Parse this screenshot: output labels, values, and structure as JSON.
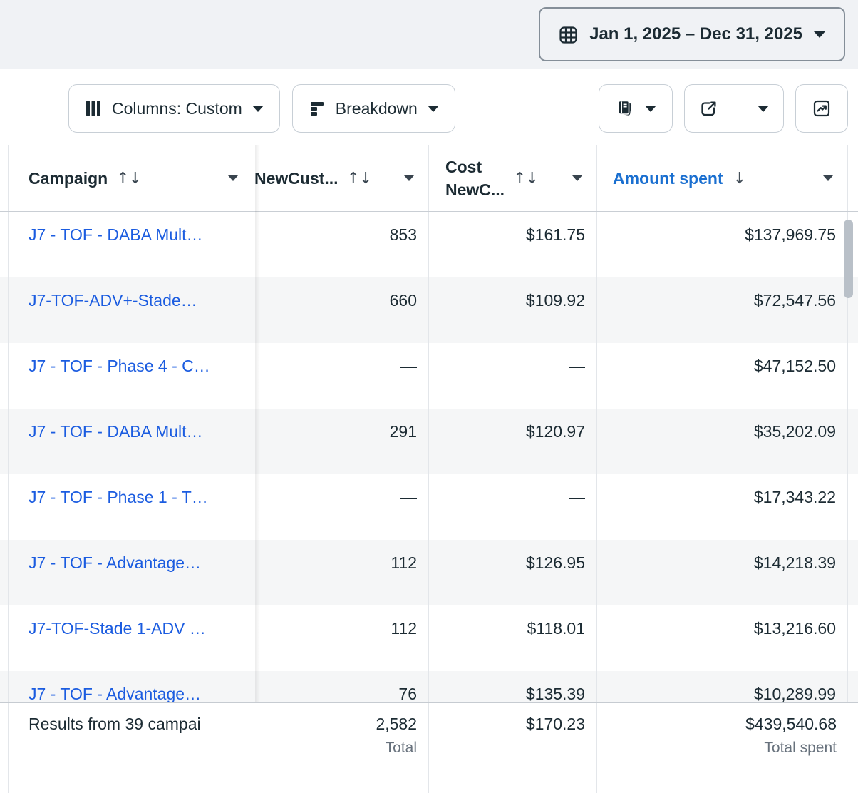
{
  "topbar": {
    "date_range": "Jan 1, 2025 – Dec 31, 2025"
  },
  "toolbar": {
    "columns_label": "Columns: Custom",
    "breakdown_label": "Breakdown"
  },
  "glyphs": {
    "sort_both": "↑↓",
    "sort_desc": "↓"
  },
  "table": {
    "columns": {
      "campaign": {
        "label": "Campaign"
      },
      "new_customers": {
        "label": "NewCust..."
      },
      "cost": {
        "label_line1": "Cost",
        "label_line2": "NewC..."
      },
      "amount_spent": {
        "label": "Amount spent",
        "sorted": "descending"
      }
    },
    "rows": [
      {
        "campaign": "J7 - TOF - DABA Mult…",
        "new_customers": "853",
        "cost": "$161.75",
        "amount_spent": "$137,969.75"
      },
      {
        "campaign": "J7-TOF-ADV+-Stade…",
        "new_customers": "660",
        "cost": "$109.92",
        "amount_spent": "$72,547.56"
      },
      {
        "campaign": "J7 - TOF - Phase 4 - C…",
        "new_customers": "—",
        "cost": "—",
        "amount_spent": "$47,152.50"
      },
      {
        "campaign": "J7 - TOF - DABA Mult…",
        "new_customers": "291",
        "cost": "$120.97",
        "amount_spent": "$35,202.09"
      },
      {
        "campaign": "J7 - TOF - Phase 1 - T…",
        "new_customers": "—",
        "cost": "—",
        "amount_spent": "$17,343.22"
      },
      {
        "campaign": "J7 - TOF - Advantage…",
        "new_customers": "112",
        "cost": "$126.95",
        "amount_spent": "$14,218.39"
      },
      {
        "campaign": "J7-TOF-Stade 1-ADV …",
        "new_customers": "112",
        "cost": "$118.01",
        "amount_spent": "$13,216.60"
      },
      {
        "campaign": "J7 - TOF - Advantage…",
        "new_customers": "76",
        "cost": "$135.39",
        "amount_spent": "$10,289.99"
      }
    ],
    "footer": {
      "summary": "Results from 39 campai",
      "new_customers_total": "2,582",
      "new_customers_total_label": "Total",
      "cost_total": "$170.23",
      "amount_spent_total": "$439,540.68",
      "amount_spent_total_label": "Total spent"
    }
  },
  "colors": {
    "link_blue": "#1b5ce0",
    "sorted_header_blue": "#1a6fd0",
    "dark_text": "#1c2b33",
    "top_band": "#f0f2f5",
    "row_alternate": "#f5f6f7"
  }
}
